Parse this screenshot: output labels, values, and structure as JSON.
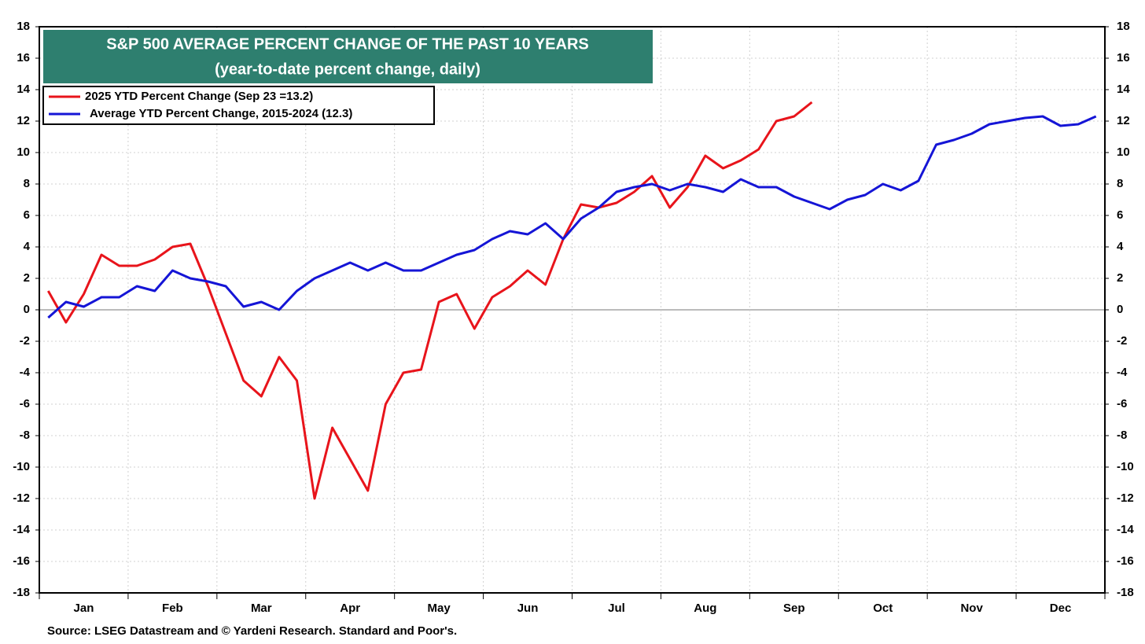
{
  "chart_data": {
    "type": "line",
    "title": "S&P 500 AVERAGE PERCENT CHANGE OF THE PAST 10 YEARS",
    "subtitle": "(year-to-date percent change, daily)",
    "source": "Source: LSEG Datastream and © Yardeni Research. Standard and Poor's.",
    "categories": [
      null,
      null,
      "Jan",
      null,
      null,
      null,
      null,
      "Feb",
      null,
      null,
      null,
      null,
      "Mar",
      null,
      null,
      null,
      null,
      "Apr",
      null,
      null,
      null,
      null,
      "May",
      null,
      null,
      null,
      null,
      "Jun",
      null,
      null,
      null,
      null,
      "Jul",
      null,
      null,
      null,
      null,
      "Aug",
      null,
      null,
      null,
      null,
      "Sep",
      null,
      null,
      null,
      null,
      "Oct",
      null,
      null,
      null,
      null,
      "Nov",
      null,
      null,
      null,
      null,
      "Dec",
      null,
      null
    ],
    "series": [
      {
        "name": "2025 YTD Percent Change (Sep 23 =13.2)",
        "color": "#e8141b",
        "values": [
          1.2,
          -0.8,
          1.0,
          3.5,
          2.8,
          2.8,
          3.2,
          4.0,
          4.2,
          1.5,
          -1.5,
          -4.5,
          -5.5,
          -3.0,
          -4.5,
          -12,
          -7.5,
          -9.5,
          -11.5,
          -6.0,
          -4.0,
          -3.8,
          0.5,
          1.0,
          -1.2,
          0.8,
          1.5,
          2.5,
          1.6,
          4.5,
          6.7,
          6.5,
          6.8,
          7.5,
          8.5,
          6.5,
          7.8,
          9.8,
          9.0,
          9.5,
          10.2,
          12.0,
          12.3,
          13.2,
          null,
          null,
          null,
          null,
          null,
          null,
          null,
          null,
          null,
          null,
          null,
          null,
          null,
          null,
          null,
          null
        ]
      },
      {
        "name": "Average YTD Percent Change, 2015-2024 (12.3)",
        "color": "#1515d6",
        "values": [
          -0.5,
          0.5,
          0.2,
          0.8,
          0.8,
          1.5,
          1.2,
          2.5,
          2.0,
          1.8,
          1.5,
          0.2,
          0.5,
          0,
          1.2,
          2.0,
          2.5,
          3.0,
          2.5,
          3.0,
          2.5,
          2.5,
          3.0,
          3.5,
          3.8,
          4.5,
          5.0,
          4.8,
          5.5,
          4.5,
          5.8,
          6.5,
          7.5,
          7.8,
          8.0,
          7.6,
          8.0,
          7.8,
          7.5,
          8.3,
          7.8,
          7.8,
          7.2,
          6.8,
          6.4,
          7.0,
          7.3,
          8.0,
          7.6,
          8.2,
          10.5,
          10.8,
          11.2,
          11.8,
          12.0,
          12.2,
          12.3,
          11.7,
          11.8,
          12.3
        ]
      }
    ],
    "ylim": [
      -18,
      18
    ],
    "yticks": [
      -18,
      -16,
      -14,
      -12,
      -10,
      -8,
      -6,
      -4,
      -2,
      0,
      2,
      4,
      6,
      8,
      10,
      12,
      14,
      16,
      18
    ],
    "grid": true
  }
}
